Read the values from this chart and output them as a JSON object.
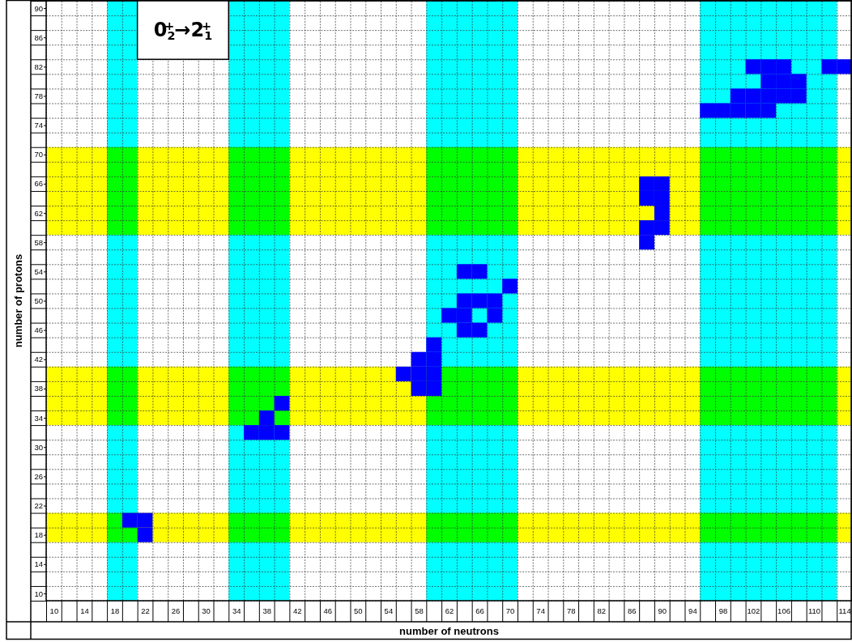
{
  "chart_data": {
    "type": "scatter",
    "xlabel": "number of neutrons",
    "ylabel": "number of protons",
    "annotations": [
      "0$_{2}$$^{+}$→2$_{1}$$^{+}$"
    ],
    "xlim": [
      9,
      115
    ],
    "ylim": [
      9,
      91
    ],
    "xticks": [
      10,
      14,
      18,
      22,
      26,
      30,
      34,
      38,
      42,
      46,
      50,
      54,
      58,
      62,
      66,
      70,
      74,
      78,
      82,
      86,
      90,
      94,
      98,
      102,
      106,
      110,
      114,
      {
        "value": 9,
        "label": null
      },
      {
        "value": 11,
        "label": null
      },
      {
        "value": 13,
        "label": null
      },
      {
        "value": 15,
        "label": null
      },
      {
        "value": 17,
        "label": null
      },
      {
        "value": 19,
        "label": null
      },
      {
        "value": 21,
        "label": null
      },
      {
        "value": 23,
        "label": null
      },
      {
        "value": 25,
        "label": null
      },
      {
        "value": 27,
        "label": null
      },
      {
        "value": 29,
        "label": null
      },
      {
        "value": 31,
        "label": null
      },
      {
        "value": 33,
        "label": null
      },
      {
        "value": 35,
        "label": null
      },
      {
        "value": 37,
        "label": null
      },
      {
        "value": 39,
        "label": null
      },
      {
        "value": 41,
        "label": null
      },
      {
        "value": 43,
        "label": null
      },
      {
        "value": 45,
        "label": null
      },
      {
        "value": 47,
        "label": null
      },
      {
        "value": 49,
        "label": null
      },
      {
        "value": 51,
        "label": null
      },
      {
        "value": 53,
        "label": null
      },
      {
        "value": 55,
        "label": null
      },
      {
        "value": 57,
        "label": null
      },
      {
        "value": 59,
        "label": null
      },
      {
        "value": 61,
        "label": null
      },
      {
        "value": 63,
        "label": null
      },
      {
        "value": 65,
        "label": null
      },
      {
        "value": 67,
        "label": null
      },
      {
        "value": 69,
        "label": null
      },
      {
        "value": 71,
        "label": null
      },
      {
        "value": 73,
        "label": null
      },
      {
        "value": 75,
        "label": null
      },
      {
        "value": 77,
        "label": null
      },
      {
        "value": 79,
        "label": null
      },
      {
        "value": 81,
        "label": null
      },
      {
        "value": 83,
        "label": null
      },
      {
        "value": 85,
        "label": null
      },
      {
        "value": 87,
        "label": null
      },
      {
        "value": 89,
        "label": null
      },
      {
        "value": 91,
        "label": null
      },
      {
        "value": 93,
        "label": null
      },
      {
        "value": 95,
        "label": null
      },
      {
        "value": 97,
        "label": null
      },
      {
        "value": 99,
        "label": null
      },
      {
        "value": 101,
        "label": null
      },
      {
        "value": 103,
        "label": null
      },
      {
        "value": 105,
        "label": null
      },
      {
        "value": 107,
        "label": null
      },
      {
        "value": 109,
        "label": null
      },
      {
        "value": 111,
        "label": null
      },
      {
        "value": 113,
        "label": null
      },
      {
        "value": 115,
        "label": null
      }
    ],
    "yticks": [
      10,
      14,
      18,
      22,
      26,
      30,
      34,
      38,
      42,
      46,
      50,
      54,
      58,
      62,
      66,
      70,
      74,
      78,
      82,
      86,
      90,
      {
        "value": 9,
        "label": null
      },
      {
        "value": 11,
        "label": null
      },
      {
        "value": 13,
        "label": null
      },
      {
        "value": 15,
        "label": null
      },
      {
        "value": 17,
        "label": null
      },
      {
        "value": 19,
        "label": null
      },
      {
        "value": 21,
        "label": null
      },
      {
        "value": 23,
        "label": null
      },
      {
        "value": 25,
        "label": null
      },
      {
        "value": 27,
        "label": null
      },
      {
        "value": 29,
        "label": null
      },
      {
        "value": 31,
        "label": null
      },
      {
        "value": 33,
        "label": null
      },
      {
        "value": 35,
        "label": null
      },
      {
        "value": 37,
        "label": null
      },
      {
        "value": 39,
        "label": null
      },
      {
        "value": 41,
        "label": null
      },
      {
        "value": 43,
        "label": null
      },
      {
        "value": 45,
        "label": null
      },
      {
        "value": 47,
        "label": null
      },
      {
        "value": 49,
        "label": null
      },
      {
        "value": 51,
        "label": null
      },
      {
        "value": 53,
        "label": null
      },
      {
        "value": 55,
        "label": null
      },
      {
        "value": 57,
        "label": null
      },
      {
        "value": 59,
        "label": null
      },
      {
        "value": 61,
        "label": null
      },
      {
        "value": 63,
        "label": null
      },
      {
        "value": 65,
        "label": null
      },
      {
        "value": 67,
        "label": null
      },
      {
        "value": 69,
        "label": null
      },
      {
        "value": 71,
        "label": null
      },
      {
        "value": 73,
        "label": null
      },
      {
        "value": 75,
        "label": null
      },
      {
        "value": 77,
        "label": null
      },
      {
        "value": 79,
        "label": null
      },
      {
        "value": 81,
        "label": null
      },
      {
        "value": 83,
        "label": null
      },
      {
        "value": 85,
        "label": null
      },
      {
        "value": 87,
        "label": null
      },
      {
        "value": 89,
        "label": null
      },
      {
        "value": 91,
        "label": null
      }
    ],
    "grid": true,
    "marker": "square",
    "bands": [
      {
        "axis": "x",
        "from": 17,
        "to": 21,
        "color": "#00ffff"
      },
      {
        "axis": "x",
        "from": 33,
        "to": 41,
        "color": "#00ffff"
      },
      {
        "axis": "x",
        "from": 59,
        "to": 71,
        "color": "#00ffff"
      },
      {
        "axis": "x",
        "from": 95,
        "to": 113,
        "color": "#00ffff"
      },
      {
        "axis": "y",
        "from": 17,
        "to": 21,
        "color": "#ffff00"
      },
      {
        "axis": "y",
        "from": 33,
        "to": 41,
        "color": "#ffff00"
      },
      {
        "axis": "y",
        "from": 59,
        "to": 71,
        "color": "#ffff00"
      }
    ],
    "series": [
      {
        "color": "#0000ff",
        "x": [
          20,
          22,
          22,
          40,
          38,
          36,
          38,
          40,
          60,
          58,
          60,
          56,
          58,
          60,
          58,
          60,
          64,
          66,
          70,
          64,
          66,
          68,
          62,
          64,
          68,
          64,
          66,
          88,
          90,
          88,
          90,
          90,
          88,
          90,
          88,
          102,
          104,
          106,
          112,
          114,
          104,
          106,
          108,
          100,
          102,
          104,
          106,
          108,
          96,
          98,
          100,
          102,
          104
        ],
        "values": [
          20,
          20,
          18,
          36,
          34,
          32,
          32,
          32,
          44,
          42,
          42,
          40,
          40,
          40,
          38,
          38,
          54,
          54,
          52,
          50,
          50,
          50,
          48,
          48,
          48,
          46,
          46,
          66,
          66,
          64,
          64,
          62,
          60,
          60,
          58,
          82,
          82,
          82,
          82,
          82,
          80,
          80,
          80,
          78,
          78,
          78,
          78,
          78,
          76,
          76,
          76,
          76,
          76
        ]
      }
    ]
  }
}
